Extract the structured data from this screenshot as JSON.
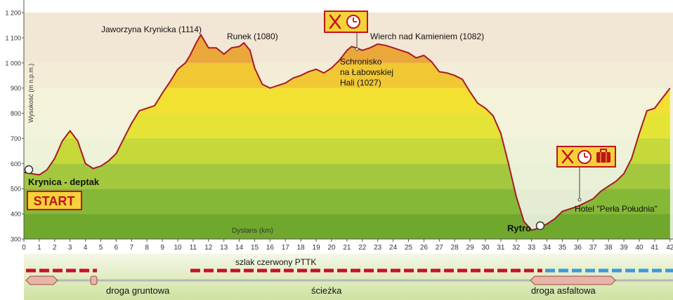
{
  "chart_data": {
    "type": "area",
    "ylabel": "Wysokość (m n.p.m.)",
    "xlabel": "Dystans (km)",
    "ylim": [
      300,
      1200
    ],
    "xlim": [
      0,
      42
    ],
    "y_ticks": [
      "1 200",
      "1 100",
      "1 000",
      "900",
      "800",
      "700",
      "600",
      "500",
      "400",
      "300"
    ],
    "y_tick_values": [
      1200,
      1100,
      1000,
      900,
      800,
      700,
      600,
      500,
      400,
      300
    ],
    "x_ticks": [
      "0",
      "1",
      "2",
      "3",
      "4",
      "5",
      "6",
      "7",
      "8",
      "9",
      "10",
      "11",
      "12",
      "13",
      "14",
      "15",
      "16",
      "17",
      "18",
      "19",
      "20",
      "21",
      "22",
      "23",
      "24",
      "25",
      "26",
      "27",
      "28",
      "29",
      "30",
      "31",
      "32",
      "33",
      "34",
      "35",
      "36",
      "37",
      "38",
      "39",
      "40",
      "41",
      "42"
    ],
    "bands": [
      {
        "from": 300,
        "to": 400,
        "color": "#6fa82c"
      },
      {
        "from": 400,
        "to": 500,
        "color": "#86b838"
      },
      {
        "from": 500,
        "to": 600,
        "color": "#a3c83e"
      },
      {
        "from": 600,
        "to": 700,
        "color": "#c6d83a"
      },
      {
        "from": 700,
        "to": 800,
        "color": "#e4e336"
      },
      {
        "from": 800,
        "to": 900,
        "color": "#f3e132"
      },
      {
        "from": 900,
        "to": 1000,
        "color": "#f1c834"
      },
      {
        "from": 1000,
        "to": 1200,
        "color": "#eaa83a"
      }
    ],
    "line_color": "#a8182a",
    "profile": {
      "x": [
        0,
        0.5,
        1,
        1.5,
        2,
        2.5,
        3,
        3.5,
        4,
        4.5,
        5,
        5.5,
        6,
        6.5,
        7,
        7.5,
        8,
        8.5,
        9,
        9.5,
        10,
        10.5,
        10.8,
        11.2,
        11.5,
        12,
        12.5,
        13,
        13.5,
        14,
        14.3,
        14.7,
        15,
        15.5,
        16,
        16.5,
        17,
        17.5,
        18,
        18.5,
        19,
        19.5,
        20,
        20.5,
        21,
        21.3,
        21.6,
        22,
        22.5,
        23,
        23.5,
        24,
        24.5,
        25,
        25.5,
        26,
        26.5,
        27,
        27.5,
        28,
        28.5,
        29,
        29.5,
        30,
        30.5,
        31,
        31.5,
        32,
        32.5,
        33,
        33.3,
        33.5,
        34,
        34.5,
        35,
        35.5,
        36,
        36.5,
        37,
        37.5,
        38,
        38.5,
        39,
        39.5,
        40,
        40.5,
        41,
        41.5,
        42
      ],
      "y": [
        565,
        560,
        555,
        575,
        620,
        690,
        730,
        690,
        600,
        580,
        590,
        610,
        640,
        700,
        760,
        810,
        820,
        830,
        880,
        925,
        975,
        1000,
        1030,
        1080,
        1112,
        1060,
        1060,
        1035,
        1060,
        1065,
        1080,
        1050,
        980,
        915,
        900,
        910,
        920,
        940,
        950,
        965,
        975,
        960,
        980,
        1010,
        1050,
        1065,
        1060,
        1050,
        1060,
        1075,
        1070,
        1060,
        1050,
        1040,
        1020,
        1030,
        1005,
        965,
        960,
        950,
        935,
        885,
        840,
        820,
        790,
        720,
        600,
        470,
        370,
        335,
        340,
        345,
        360,
        380,
        410,
        420,
        430,
        445,
        460,
        490,
        510,
        530,
        560,
        620,
        720,
        810,
        820,
        860,
        900
      ]
    },
    "annotations": [
      {
        "label": "Jaworzyna Krynicka (1114)",
        "x": 11.2,
        "y": 1114
      },
      {
        "label": "Runek (1080)",
        "x": 14.3,
        "y": 1080
      },
      {
        "label": "Wierch nad Kamieniem (1082)",
        "x": 23.0,
        "y": 1082
      },
      {
        "label_lines": [
          "Schronisko",
          "na Łabowskiej",
          "Hali  (1027)"
        ],
        "x": 21.6,
        "y": 1060
      },
      {
        "label": "Hotel \"Perła Południa\"",
        "x": 36.0,
        "y": 450
      },
      {
        "label": "Krynica - deptak",
        "x": 0,
        "y": 565
      },
      {
        "label": "Rytro",
        "x": 33.5,
        "y": 335
      }
    ]
  },
  "labels": {
    "start": "START",
    "krynica": "Krynica - deptak",
    "rytro": "Rytro",
    "jaworzyna": "Jaworzyna Krynicka (1114)",
    "runek": "Runek (1080)",
    "wierch": "Wierch nad Kamieniem (1082)",
    "schronisko_1": "Schronisko",
    "schronisko_2": "na Łabowskiej",
    "schronisko_3": "Hali  (1027)",
    "hotel": "Hotel \"Perła Południa\""
  },
  "legend": {
    "trail": "szlak czerwony PTTK",
    "road_dirt": "droga gruntowa",
    "path": "ścieżka",
    "road_asphalt": "droga asfaltowa"
  },
  "icons": {
    "shelter_icons": [
      "fork-knife-icon",
      "clock-icon"
    ],
    "hotel_icons": [
      "fork-knife-icon",
      "clock-icon",
      "suitcase-icon"
    ]
  },
  "colors": {
    "trail_red": "#c8102e",
    "trail_blue": "#3a9ad9",
    "marker_red": "#c0141c",
    "marker_fill": "#f5d23a"
  }
}
